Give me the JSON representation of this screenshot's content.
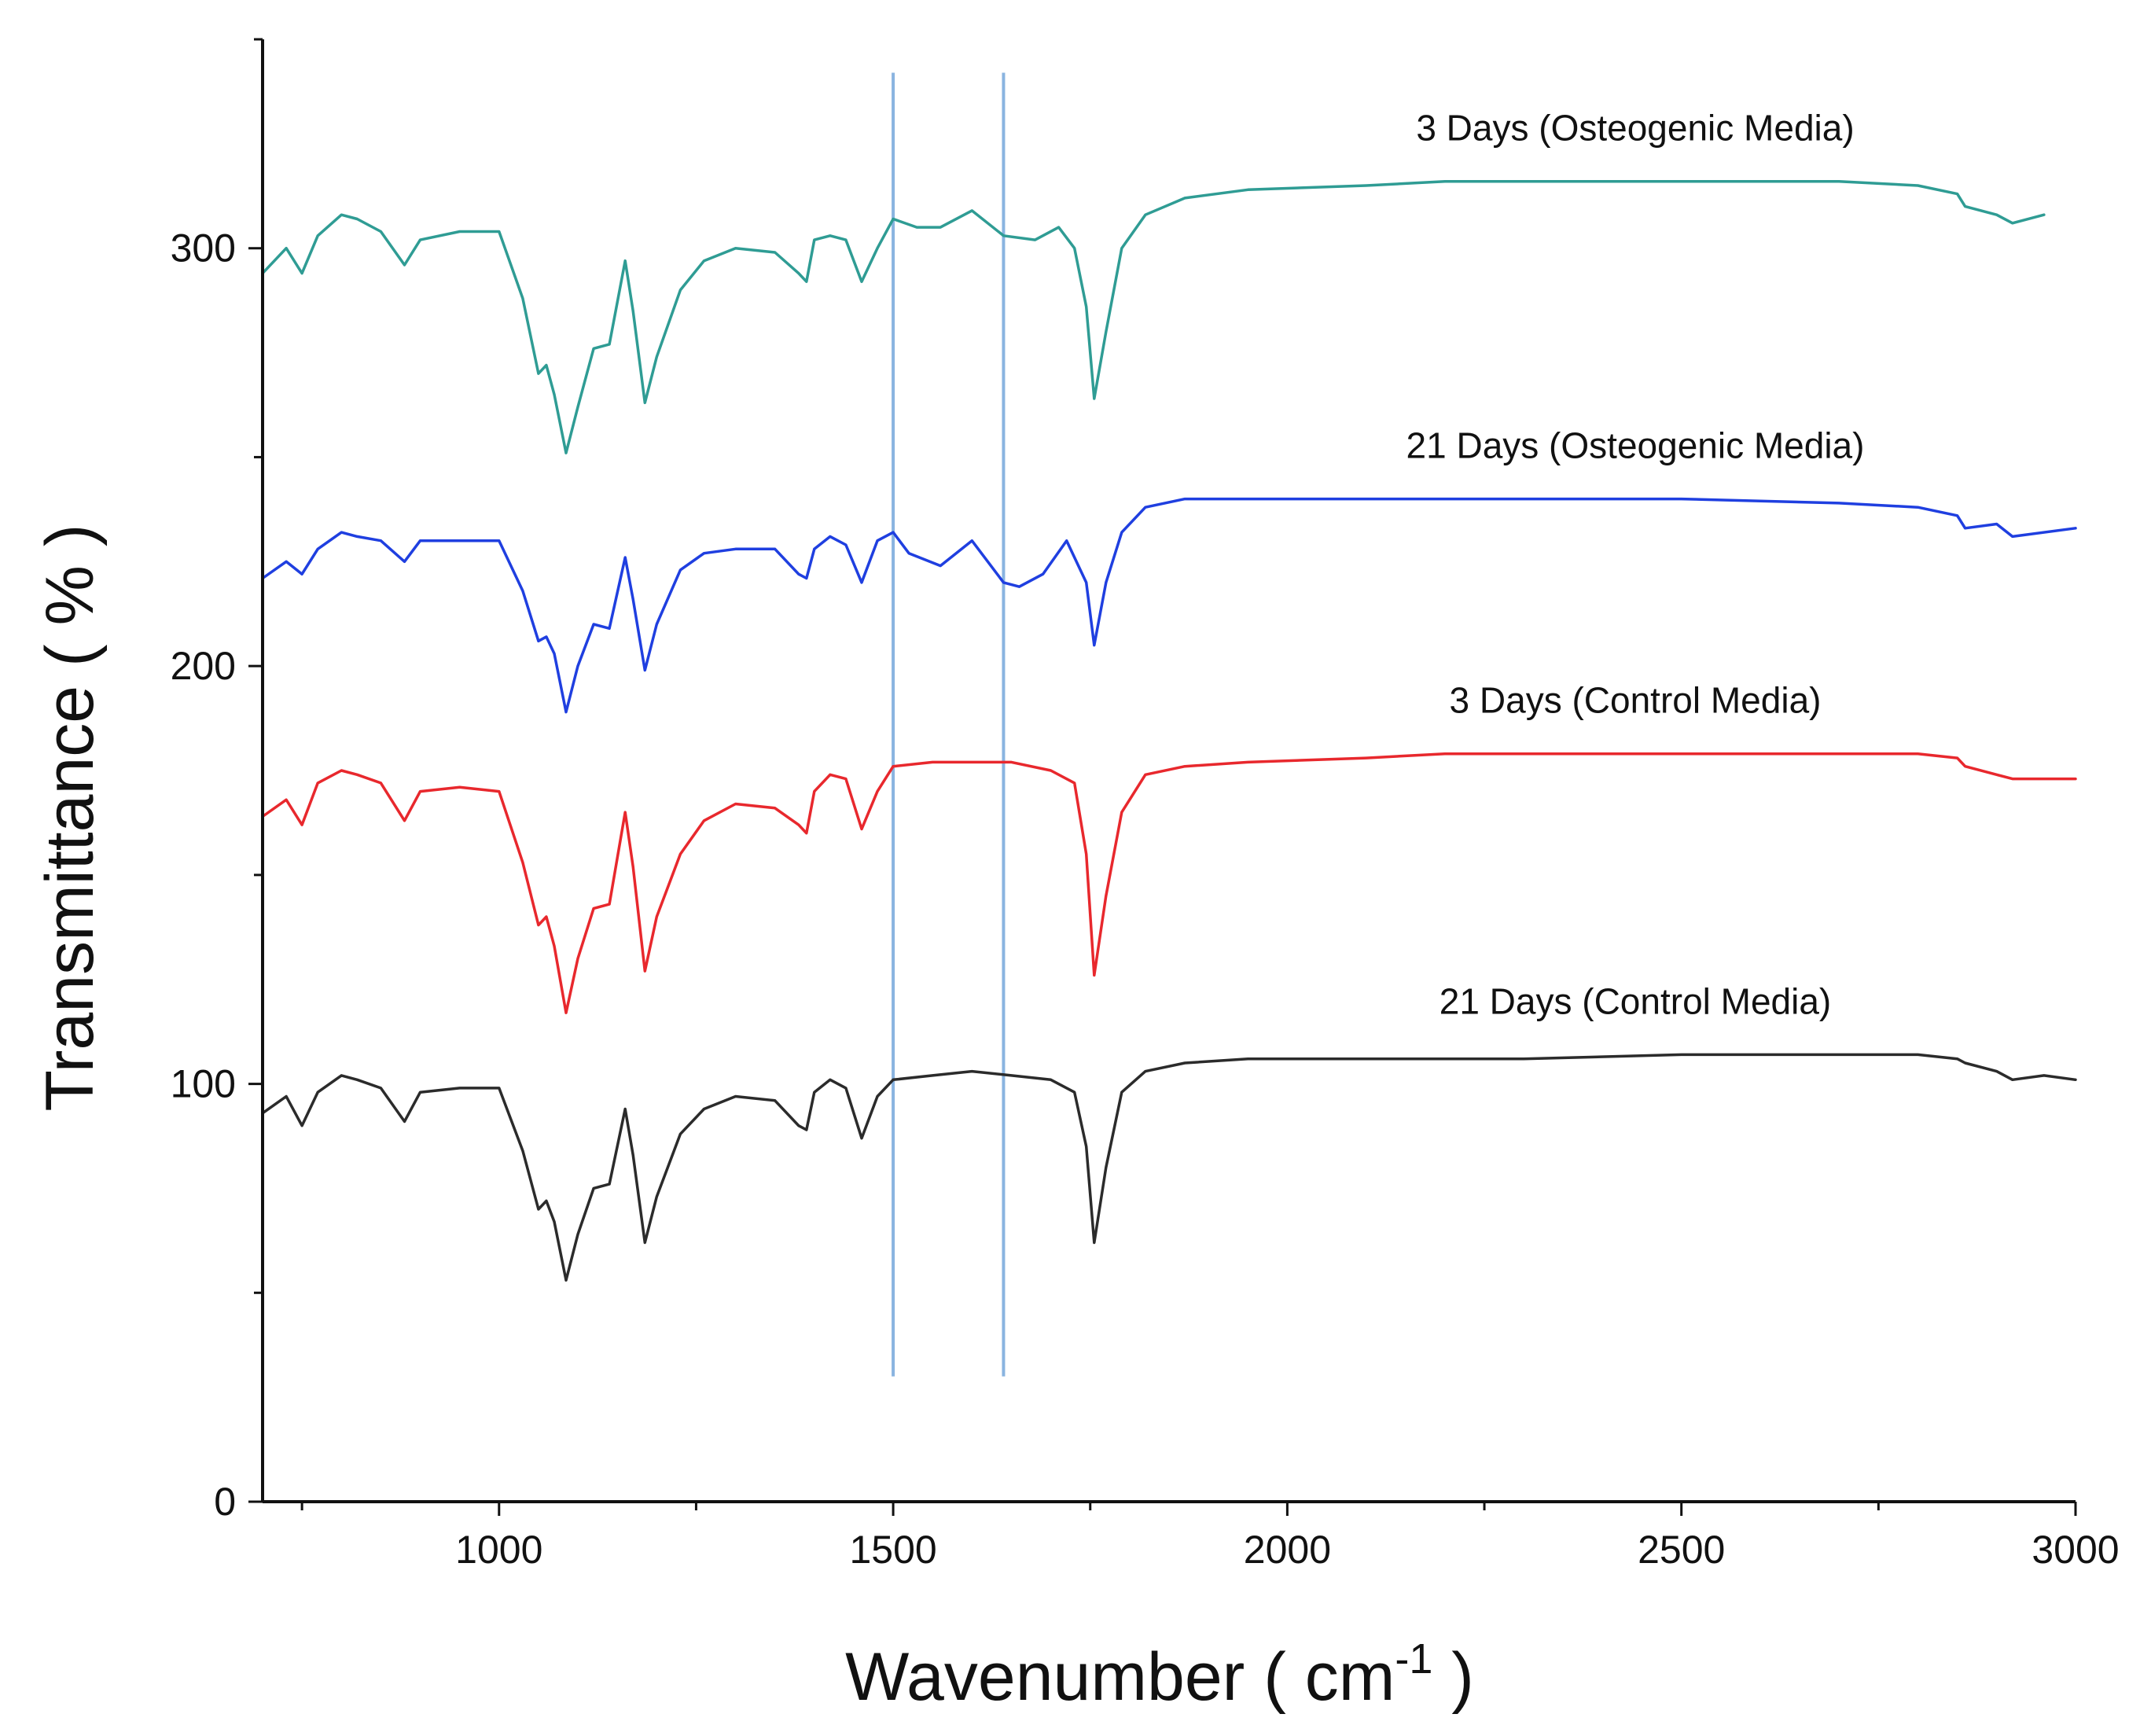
{
  "chart_data": {
    "type": "line",
    "title": "",
    "xlabel": "Wavenumber ( cm",
    "xlabel_superscript": "-1",
    "xlabel_suffix": " )",
    "ylabel": "Transmittance ( % )",
    "xlim": [
      700,
      3000
    ],
    "ylim": [
      0,
      350
    ],
    "x_ticks": [
      1000,
      1500,
      2000,
      2500,
      3000
    ],
    "y_ticks": [
      0,
      100,
      200,
      300
    ],
    "grid": false,
    "vertical_reference_lines": [
      {
        "x": 1500,
        "y_range": [
          30,
          342
        ],
        "color": "#8ab4e0"
      },
      {
        "x": 1640,
        "y_range": [
          30,
          342
        ],
        "color": "#8ab4e0"
      }
    ],
    "series": [
      {
        "name": "3 Days (Osteogenic Media)",
        "color": "#2f9c94",
        "x": [
          700,
          730,
          750,
          770,
          800,
          820,
          850,
          880,
          900,
          950,
          1000,
          1030,
          1050,
          1060,
          1070,
          1085,
          1100,
          1120,
          1140,
          1160,
          1170,
          1185,
          1200,
          1230,
          1260,
          1300,
          1350,
          1380,
          1390,
          1400,
          1420,
          1440,
          1460,
          1480,
          1500,
          1530,
          1560,
          1600,
          1640,
          1680,
          1710,
          1730,
          1745,
          1755,
          1770,
          1790,
          1820,
          1870,
          1950,
          2100,
          2200,
          2300,
          2500,
          2700,
          2800,
          2850,
          2860,
          2900,
          2920,
          2960
        ],
        "y": [
          294,
          300,
          294,
          303,
          308,
          307,
          304,
          296,
          302,
          304,
          304,
          288,
          270,
          272,
          265,
          251,
          262,
          276,
          277,
          297,
          285,
          263,
          274,
          290,
          297,
          300,
          299,
          294,
          292,
          302,
          303,
          302,
          292,
          300,
          307,
          305,
          305,
          309,
          303,
          302,
          305,
          300,
          286,
          264,
          280,
          300,
          308,
          312,
          314,
          315,
          316,
          316,
          316,
          316,
          315,
          313,
          310,
          308,
          306,
          308
        ]
      },
      {
        "name": "21 Days (Osteogenic Media)",
        "color": "#1f3fe0",
        "x": [
          700,
          730,
          750,
          770,
          800,
          820,
          850,
          880,
          900,
          950,
          1000,
          1030,
          1050,
          1060,
          1070,
          1085,
          1100,
          1120,
          1140,
          1160,
          1170,
          1185,
          1200,
          1230,
          1260,
          1300,
          1350,
          1380,
          1390,
          1400,
          1420,
          1440,
          1460,
          1480,
          1500,
          1520,
          1560,
          1600,
          1640,
          1660,
          1690,
          1720,
          1745,
          1755,
          1770,
          1790,
          1820,
          1870,
          1950,
          2100,
          2200,
          2300,
          2500,
          2700,
          2800,
          2850,
          2860,
          2900,
          2920,
          3000
        ],
        "y": [
          221,
          225,
          222,
          228,
          232,
          231,
          230,
          225,
          230,
          230,
          230,
          218,
          206,
          207,
          203,
          189,
          200,
          210,
          209,
          226,
          216,
          199,
          210,
          223,
          227,
          228,
          228,
          222,
          221,
          228,
          231,
          229,
          220,
          230,
          232,
          227,
          224,
          230,
          220,
          219,
          222,
          230,
          220,
          205,
          220,
          232,
          238,
          240,
          240,
          240,
          240,
          240,
          240,
          239,
          238,
          236,
          233,
          234,
          231,
          233
        ]
      },
      {
        "name": "3 Days (Control Media)",
        "color": "#e8282d",
        "x": [
          700,
          730,
          750,
          770,
          800,
          820,
          850,
          880,
          900,
          950,
          1000,
          1030,
          1050,
          1060,
          1070,
          1085,
          1100,
          1120,
          1140,
          1160,
          1170,
          1185,
          1200,
          1230,
          1260,
          1300,
          1350,
          1380,
          1390,
          1400,
          1420,
          1440,
          1460,
          1480,
          1500,
          1550,
          1600,
          1650,
          1700,
          1730,
          1745,
          1755,
          1770,
          1790,
          1820,
          1870,
          1950,
          2100,
          2200,
          2300,
          2500,
          2700,
          2800,
          2850,
          2860,
          2900,
          2920,
          3000
        ],
        "y": [
          164,
          168,
          162,
          172,
          175,
          174,
          172,
          163,
          170,
          171,
          170,
          153,
          138,
          140,
          133,
          117,
          130,
          142,
          143,
          165,
          152,
          127,
          140,
          155,
          163,
          167,
          166,
          162,
          160,
          170,
          174,
          173,
          161,
          170,
          176,
          177,
          177,
          177,
          175,
          172,
          155,
          126,
          145,
          165,
          174,
          176,
          177,
          178,
          179,
          179,
          179,
          179,
          179,
          178,
          176,
          174,
          173,
          173
        ]
      },
      {
        "name": "21 Days (Control Media)",
        "color": "#2b2b2b",
        "x": [
          700,
          730,
          750,
          770,
          800,
          820,
          850,
          880,
          900,
          950,
          1000,
          1030,
          1050,
          1060,
          1070,
          1085,
          1100,
          1120,
          1140,
          1160,
          1170,
          1185,
          1200,
          1230,
          1260,
          1300,
          1350,
          1380,
          1390,
          1400,
          1420,
          1440,
          1460,
          1480,
          1500,
          1550,
          1600,
          1650,
          1700,
          1730,
          1745,
          1755,
          1770,
          1790,
          1820,
          1870,
          1950,
          2100,
          2200,
          2300,
          2500,
          2700,
          2800,
          2850,
          2860,
          2900,
          2920,
          2960,
          3000
        ],
        "y": [
          93,
          97,
          90,
          98,
          102,
          101,
          99,
          91,
          98,
          99,
          99,
          84,
          70,
          72,
          67,
          53,
          64,
          75,
          76,
          94,
          83,
          62,
          73,
          88,
          94,
          97,
          96,
          90,
          89,
          98,
          101,
          99,
          87,
          97,
          101,
          102,
          103,
          102,
          101,
          98,
          85,
          62,
          80,
          98,
          103,
          105,
          106,
          106,
          106,
          106,
          107,
          107,
          107,
          106,
          105,
          103,
          101,
          102,
          101
        ]
      }
    ]
  }
}
